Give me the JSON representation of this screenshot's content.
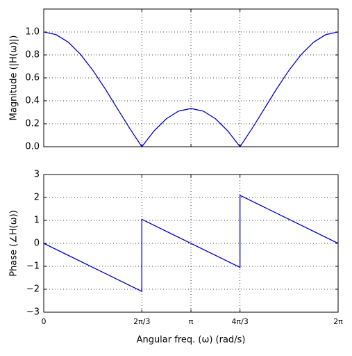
{
  "chart_data": [
    {
      "type": "line",
      "ylabel": "Magnitude (|H(ω)|)",
      "x": [
        0,
        0.262,
        0.524,
        0.785,
        1.047,
        1.309,
        1.571,
        1.833,
        2.094,
        2.356,
        2.618,
        2.88,
        3.142,
        3.403,
        3.665,
        3.927,
        4.189,
        4.451,
        4.712,
        4.974,
        5.236,
        5.498,
        5.76,
        6.021,
        6.283
      ],
      "series": [
        {
          "color": "#0000cc",
          "values": [
            1.0,
            0.977,
            0.911,
            0.805,
            0.667,
            0.506,
            0.333,
            0.161,
            0,
            0.138,
            0.244,
            0.311,
            0.333,
            0.311,
            0.244,
            0.138,
            0,
            0.161,
            0.333,
            0.506,
            0.667,
            0.805,
            0.911,
            0.977,
            1.0
          ]
        }
      ],
      "xlim": [
        0,
        6.283
      ],
      "ylim": [
        0,
        1.2
      ],
      "xticks": [
        0,
        2.094,
        3.142,
        4.189,
        6.283
      ],
      "yticks": [
        {
          "value": 0,
          "label": "0.0"
        },
        0.2,
        0.4,
        0.6,
        0.8,
        {
          "value": 1,
          "label": "1.0"
        }
      ],
      "grid": true
    },
    {
      "type": "line",
      "ylabel": "Phase (∠H(ω))",
      "xlabel": "Angular freq. (ω) (rad/s)",
      "x": [
        0,
        2.094,
        2.094,
        4.189,
        4.189,
        6.283
      ],
      "series": [
        {
          "color": "#0000cc",
          "values": [
            0,
            -2.094,
            1.047,
            -1.047,
            2.094,
            0
          ]
        }
      ],
      "xlim": [
        0,
        6.283
      ],
      "ylim": [
        -3,
        3
      ],
      "xticks": [
        {
          "value": 0,
          "label": "0"
        },
        {
          "value": 2.094,
          "label": "2π/3"
        },
        {
          "value": 3.142,
          "label": "π"
        },
        {
          "value": 4.189,
          "label": "4π/3"
        },
        {
          "value": 6.283,
          "label": "2π"
        }
      ],
      "yticks": [
        {
          "value": -3,
          "label": "−3"
        },
        {
          "value": -2,
          "label": "−2"
        },
        {
          "value": -1,
          "label": "−1"
        },
        0,
        1,
        2,
        3
      ],
      "grid": true
    }
  ]
}
